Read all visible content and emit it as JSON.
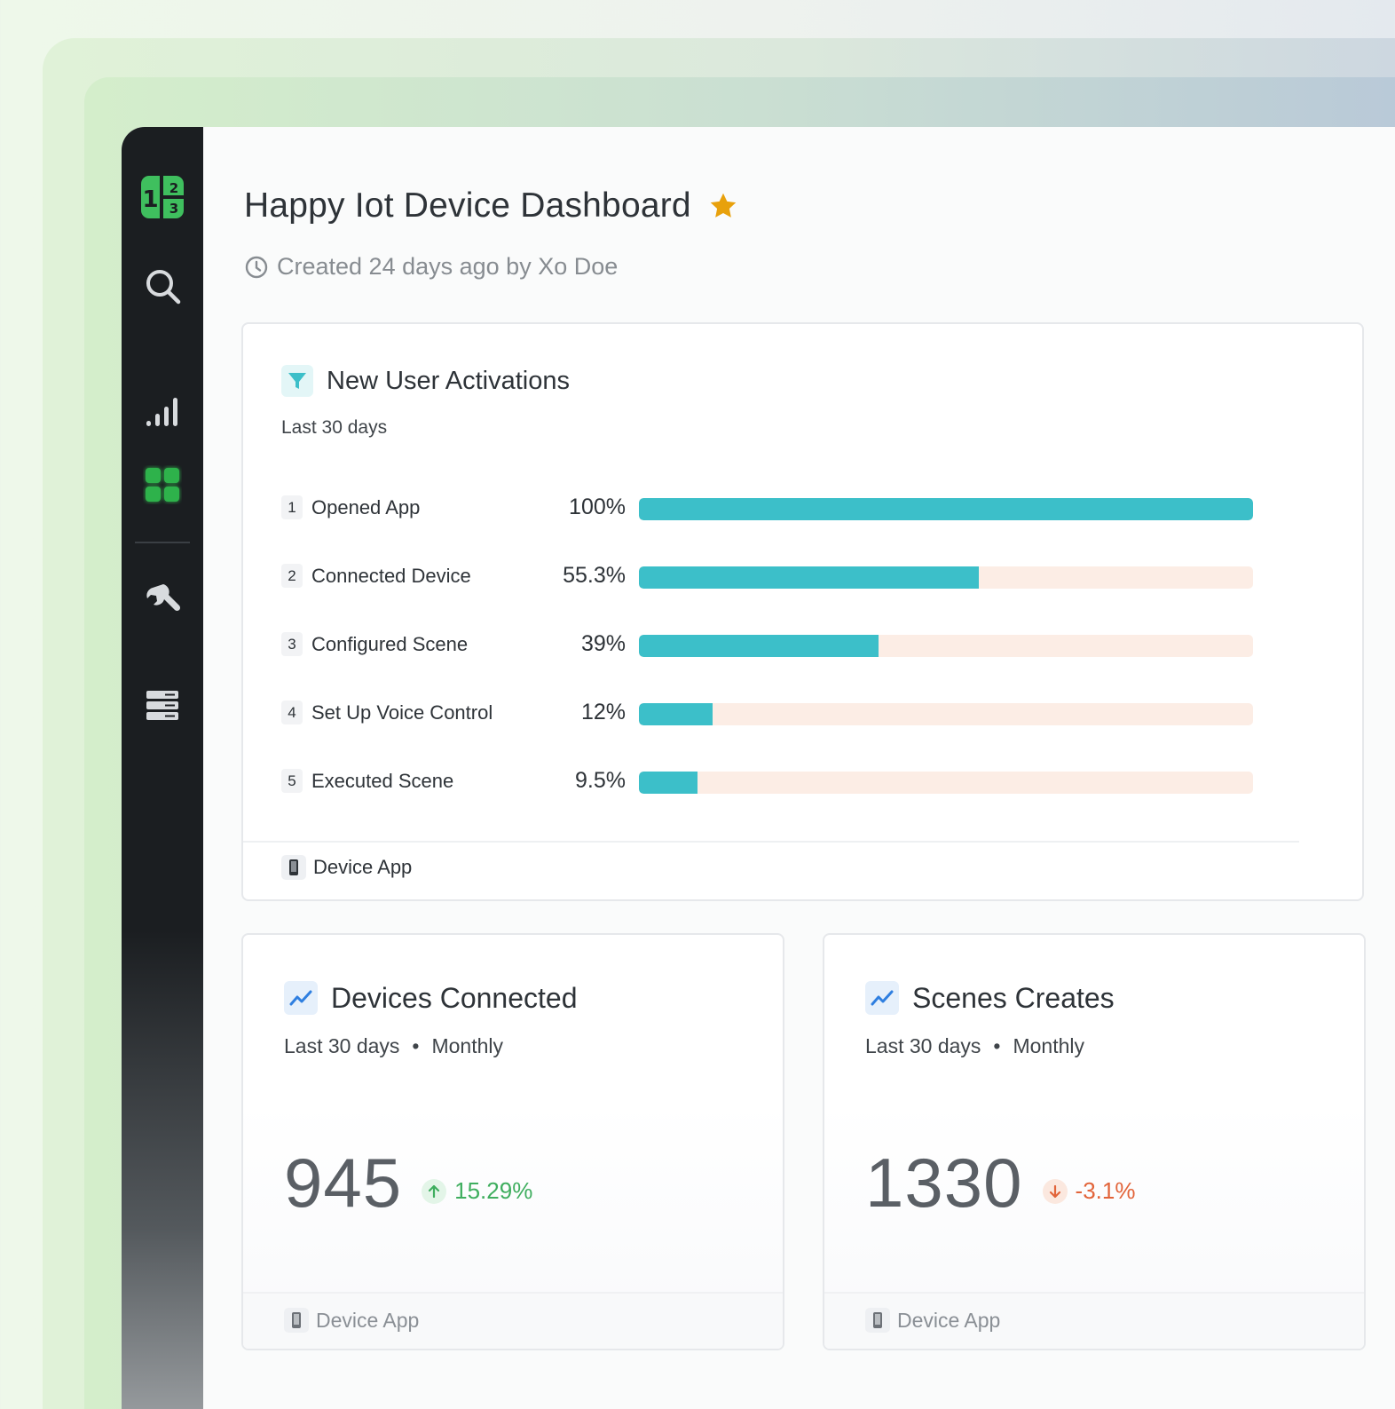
{
  "dashboard": {
    "title": "Happy Iot Device Dashboard",
    "created": "Created 24 days ago by Xo Doe"
  },
  "sidebar": {
    "items": [
      {
        "icon": "app-logo-icon"
      },
      {
        "icon": "search-icon"
      },
      {
        "icon": "bar-chart-icon"
      },
      {
        "icon": "dashboard-grid-icon",
        "active": true
      },
      {
        "icon": "wrench-icon"
      },
      {
        "icon": "database-icon"
      }
    ]
  },
  "funnel": {
    "title": "New User Activations",
    "subtitle": "Last 30 days",
    "steps": [
      {
        "num": "1",
        "label": "Opened App",
        "pct": "100%",
        "value": 100
      },
      {
        "num": "2",
        "label": "Connected Device",
        "pct": "55.3%",
        "value": 55.3
      },
      {
        "num": "3",
        "label": "Configured Scene",
        "pct": "39%",
        "value": 39
      },
      {
        "num": "4",
        "label": "Set Up Voice Control",
        "pct": "12%",
        "value": 12
      },
      {
        "num": "5",
        "label": "Executed Scene",
        "pct": "9.5%",
        "value": 9.5
      }
    ],
    "footer": "Device App"
  },
  "metrics": [
    {
      "title": "Devices Connected",
      "period": "Last 30 days",
      "interval": "Monthly",
      "value": "945",
      "delta": "15.29%",
      "direction": "up",
      "footer": "Device App"
    },
    {
      "title": "Scenes Creates",
      "period": "Last 30 days",
      "interval": "Monthly",
      "value": "1330",
      "delta": "-3.1%",
      "direction": "down",
      "footer": "Device App"
    }
  ],
  "colors": {
    "accent_green": "#2fb24c",
    "funnel_bar": "#3cbfc9",
    "funnel_track": "#fcede5",
    "star": "#e8a10c",
    "delta_up": "#3fae5f",
    "delta_down": "#e2643a"
  }
}
